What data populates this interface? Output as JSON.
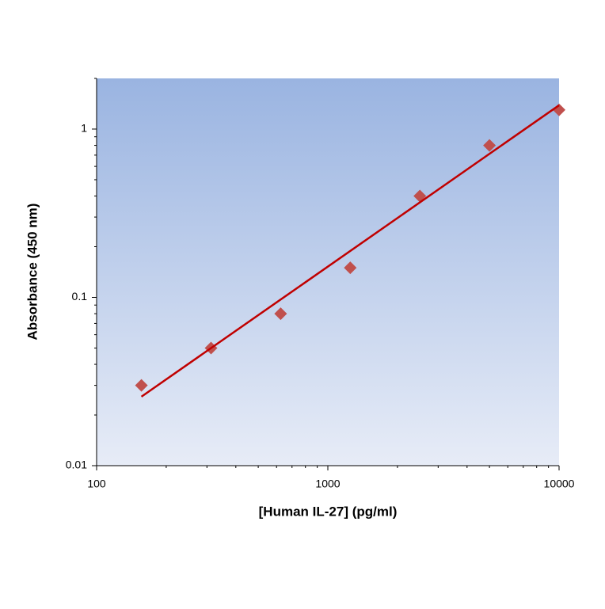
{
  "chart_data": {
    "type": "scatter",
    "xlabel": "[Human IL-27] (pg/ml)",
    "ylabel": "Absorbance (450 nm)",
    "xscale": "log",
    "yscale": "log",
    "xlim": [
      100,
      10000
    ],
    "ylim": [
      0.01,
      2
    ],
    "xticks": [
      100,
      1000,
      10000
    ],
    "yticks": [
      0.01,
      0.1,
      1
    ],
    "x_minor_ticks": [
      200,
      300,
      400,
      500,
      600,
      700,
      800,
      900,
      2000,
      3000,
      4000,
      5000,
      6000,
      7000,
      8000,
      9000
    ],
    "y_minor_ticks": [
      0.02,
      0.03,
      0.04,
      0.05,
      0.06,
      0.07,
      0.08,
      0.09,
      0.2,
      0.3,
      0.4,
      0.5,
      0.6,
      0.7,
      0.8,
      0.9,
      2
    ],
    "series": [
      {
        "color": "#c0504d",
        "marker": "diamond",
        "x": [
          156.25,
          312.5,
          625,
          1250,
          2500,
          5000,
          10000
        ],
        "values": [
          0.03,
          0.05,
          0.08,
          0.15,
          0.4,
          0.8,
          1.3
        ]
      },
      {
        "color": "#c00000",
        "marker": "line",
        "x": [
          156.25,
          10000
        ],
        "values": [
          0.0257,
          1.385
        ]
      }
    ]
  }
}
